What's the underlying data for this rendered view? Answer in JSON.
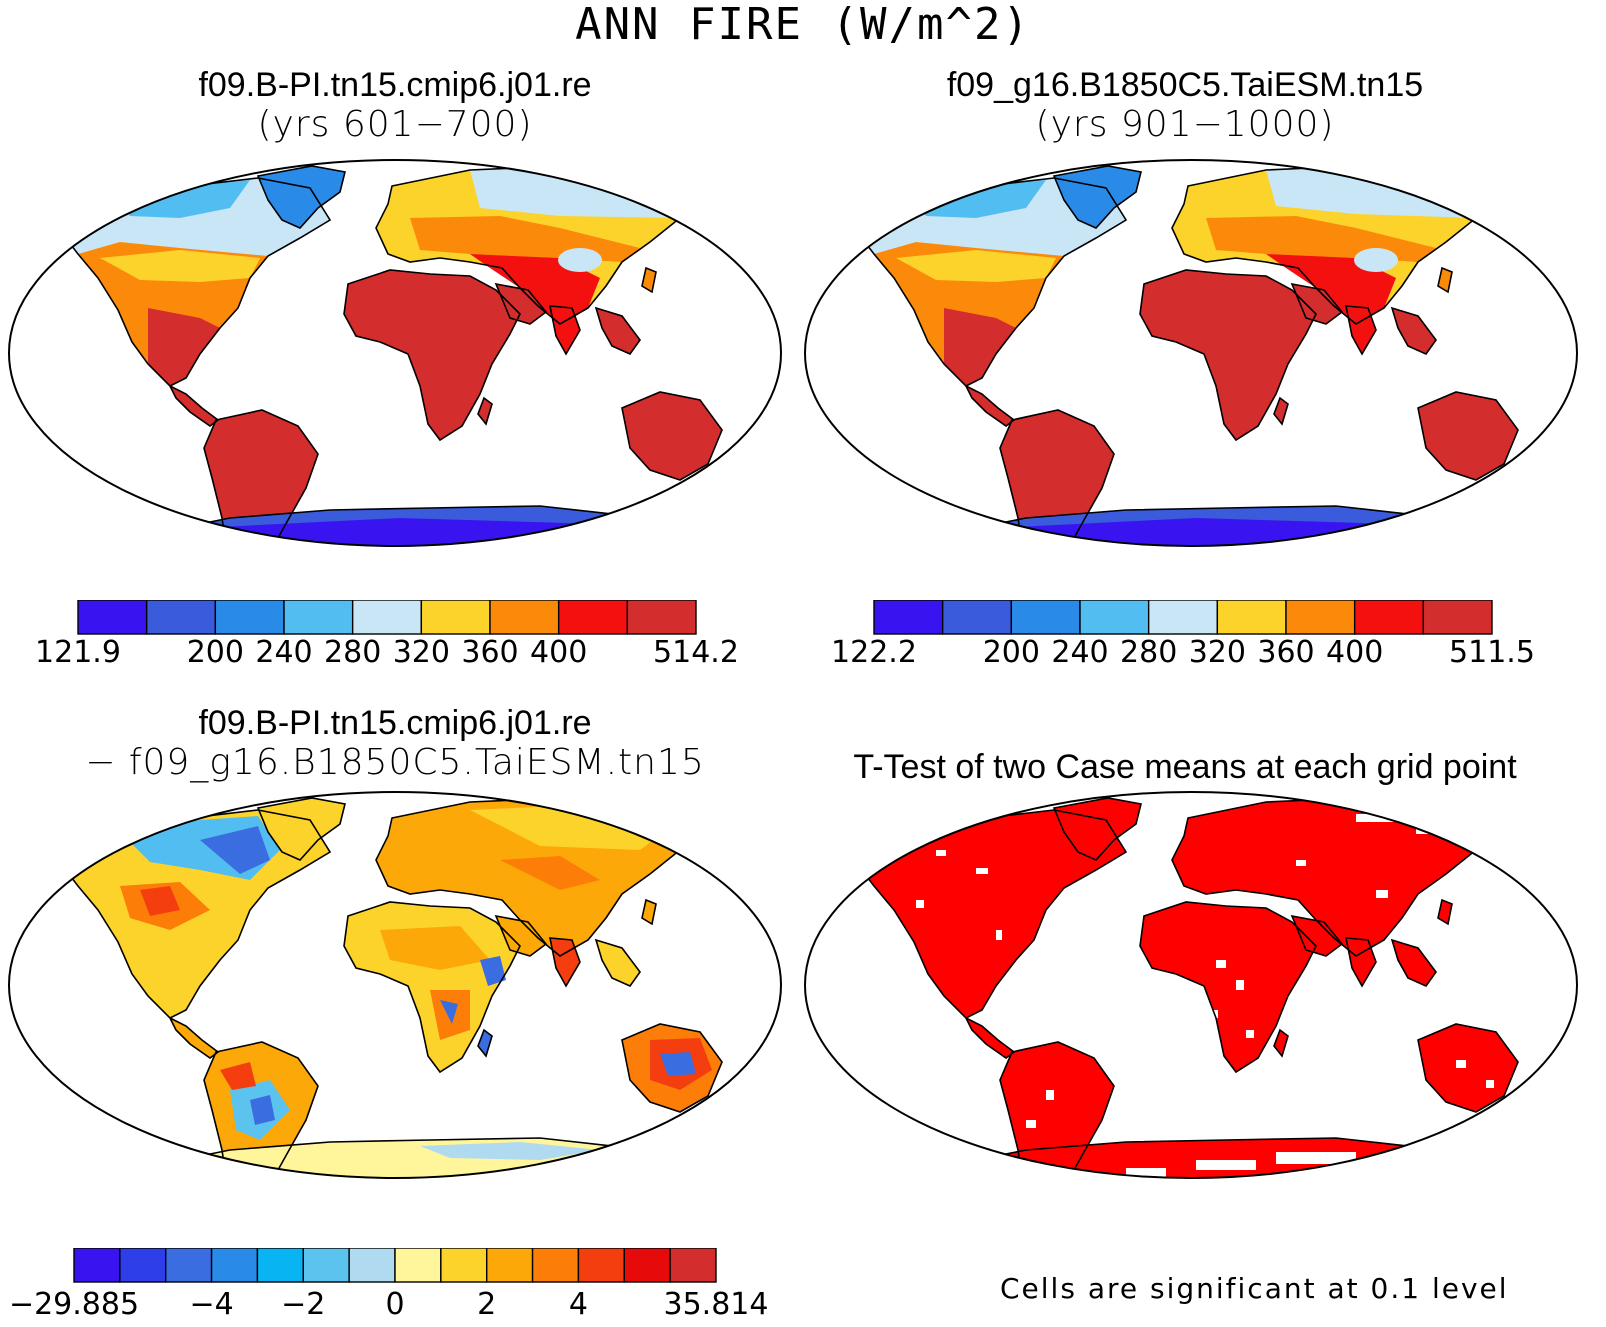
{
  "figure": {
    "title": "ANN FIRE (W/m^2)"
  },
  "panels": {
    "case1": {
      "title": "f09.B-PI.tn15.cmip6.j01.re",
      "subtitle": "(yrs 601−700)",
      "colorbar": {
        "colors": [
          "#3a14f0",
          "#3a5bdc",
          "#2a8ae8",
          "#52bdf0",
          "#c8e6f6",
          "#fcd32a",
          "#fc8a0a",
          "#f51010",
          "#d32d2d"
        ],
        "min_label": "121.9",
        "max_label": "514.2",
        "tick_labels": [
          "200",
          "240",
          "280",
          "320",
          "360",
          "400"
        ]
      }
    },
    "case2": {
      "title": "f09_g16.B1850C5.TaiESM.tn15",
      "subtitle": "(yrs 901−1000)",
      "colorbar": {
        "colors": [
          "#3a14f0",
          "#3a5bdc",
          "#2a8ae8",
          "#52bdf0",
          "#c8e6f6",
          "#fcd32a",
          "#fc8a0a",
          "#f51010",
          "#d32d2d"
        ],
        "min_label": "122.2",
        "max_label": "511.5",
        "tick_labels": [
          "200",
          "240",
          "280",
          "320",
          "360",
          "400"
        ]
      }
    },
    "diff": {
      "title": "f09.B-PI.tn15.cmip6.j01.re",
      "subtitle": "− f09_g16.B1850C5.TaiESM.tn15",
      "colorbar": {
        "colors": [
          "#3a14f0",
          "#2e3ee8",
          "#3a6de0",
          "#2a8ae8",
          "#08b4f2",
          "#5cc2ee",
          "#b0daf0",
          "#fff59a",
          "#fcd32a",
          "#fca808",
          "#fc7e08",
          "#f53e10",
          "#e60a0a",
          "#d32d2d"
        ],
        "min_label": "−29.885",
        "max_label": "35.814",
        "tick_labels": [
          "−4",
          "−2",
          "0",
          "2",
          "4"
        ]
      }
    },
    "ttest": {
      "title": "T-Test of two Case means at each grid point",
      "note": "Cells are significant at 0.1 level",
      "fill_color": "#ff0000"
    }
  }
}
